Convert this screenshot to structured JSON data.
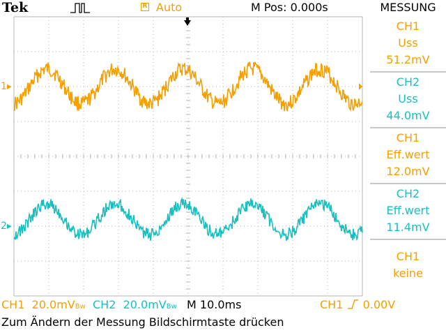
{
  "header": {
    "brand": "Tek",
    "trigger_status_icon": "trigger-pulse-icon",
    "acq_badge": "R",
    "acq_mode": "Auto",
    "m_pos": "M Pos: 0.000s",
    "menu_title": "MESSUNG"
  },
  "measurements": [
    {
      "channel": "CH1",
      "type": "Uss",
      "value": "51.2mV",
      "color": "#f5a000"
    },
    {
      "channel": "CH2",
      "type": "Uss",
      "value": "44.0mV",
      "color": "#18c0c0"
    },
    {
      "channel": "CH1",
      "type": "Eff.wert",
      "value": "12.0mV",
      "color": "#f5a000"
    },
    {
      "channel": "CH2",
      "type": "Eff.wert",
      "value": "11.4mV",
      "color": "#18c0c0"
    },
    {
      "channel": "CH1",
      "type": "keine",
      "value": "",
      "color": "#f5a000"
    }
  ],
  "markers": {
    "ch1": "1",
    "ch2": "2"
  },
  "status_bar": {
    "ch1_label": "CH1",
    "ch1_scale": "20.0mV",
    "ch1_bw": "Bw",
    "ch2_label": "CH2",
    "ch2_scale": "20.0mV",
    "ch2_bw": "Bw",
    "timebase": "M 10.0ms",
    "trigger_source": "CH1",
    "trigger_slope_icon": "rising-edge-icon",
    "trigger_level": "0.00V"
  },
  "message": "Zum Ändern der Messung Bildschirmtaste drücken",
  "colors": {
    "ch1": "#f5a000",
    "ch2": "#18c0c0",
    "grid": "#b4b4b4"
  }
}
